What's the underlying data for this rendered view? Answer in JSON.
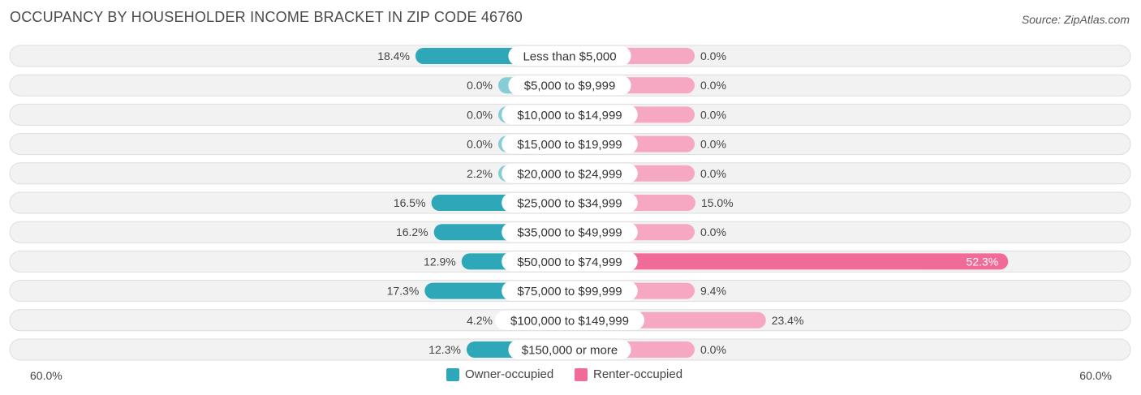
{
  "header": {
    "title": "OCCUPANCY BY HOUSEHOLDER INCOME BRACKET IN ZIP CODE 46760",
    "source": "Source: ZipAtlas.com"
  },
  "colors": {
    "owner_strong": "#2ea8b8",
    "owner_light": "#86cdd6",
    "renter_strong": "#f06b97",
    "renter_light": "#f6a8c3",
    "row_bg": "#f2f2f2",
    "row_border": "#dddddd"
  },
  "axis": {
    "left_label": "60.0%",
    "right_label": "60.0%"
  },
  "chart_data": {
    "type": "bar",
    "orientation": "diverging-horizontal",
    "xlim": [
      -60,
      60
    ],
    "categories": [
      "Less than $5,000",
      "$5,000 to $9,999",
      "$10,000 to $14,999",
      "$15,000 to $19,999",
      "$20,000 to $24,999",
      "$25,000 to $34,999",
      "$35,000 to $49,999",
      "$50,000 to $74,999",
      "$75,000 to $99,999",
      "$100,000 to $149,999",
      "$150,000 or more"
    ],
    "series": [
      {
        "name": "Owner-occupied",
        "values": [
          18.4,
          0.0,
          0.0,
          0.0,
          2.2,
          16.5,
          16.2,
          12.9,
          17.3,
          4.2,
          12.3
        ],
        "labels": [
          "18.4%",
          "0.0%",
          "0.0%",
          "0.0%",
          "2.2%",
          "16.5%",
          "16.2%",
          "12.9%",
          "17.3%",
          "4.2%",
          "12.3%"
        ]
      },
      {
        "name": "Renter-occupied",
        "values": [
          0.0,
          0.0,
          0.0,
          0.0,
          0.0,
          15.0,
          0.0,
          52.3,
          9.4,
          23.4,
          0.0
        ],
        "labels": [
          "0.0%",
          "0.0%",
          "0.0%",
          "0.0%",
          "0.0%",
          "15.0%",
          "0.0%",
          "52.3%",
          "9.4%",
          "23.4%",
          "0.0%"
        ]
      }
    ],
    "legend_position": "bottom-center"
  }
}
